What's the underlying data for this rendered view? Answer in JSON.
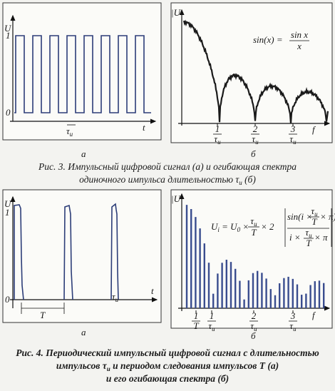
{
  "figure3": {
    "panel_a": {
      "y_label": "U",
      "level_high": "1",
      "level_low": "0",
      "x_label": "t",
      "pulse_width": {
        "symbol": "τ",
        "sub": "и"
      },
      "letter": "а"
    },
    "panel_b": {
      "y_label": "|U|",
      "formula": {
        "lhs": "sin(x) =",
        "num": "sin x",
        "den": "x"
      },
      "ticks": [
        {
          "num": "1",
          "den": "τ",
          "sub": "и"
        },
        {
          "num": "2",
          "den": "τ",
          "sub": "и"
        },
        {
          "num": "3",
          "den": "τ",
          "sub": "и"
        }
      ],
      "x_label": "f",
      "letter": "б"
    },
    "caption": {
      "line1": "Рис. 3. Импульсный цифровой сигнал (а) и огибающая спектра",
      "line2": "одиночного импульса длительностью τ",
      "line2_sub": "и",
      "line2_end": " (б)"
    }
  },
  "figure4": {
    "panel_a": {
      "y_label": "U",
      "level_high": "1",
      "level_low": "0",
      "x_label": "t",
      "period": "T",
      "pulse_width": {
        "symbol": "τ",
        "sub": "и"
      },
      "letter": "а"
    },
    "panel_b": {
      "y_label": "|U|",
      "formula": {
        "u": "U",
        "u_sub": "i",
        "eq": " = U",
        "u0_sub": "0",
        "times": " ×",
        "ratio": {
          "num": "τ",
          "sub": "и",
          "den": "T"
        },
        "times2": "× 2",
        "sin_open": "sin(i ×",
        "sin_close": "× π)",
        "den_open": "i ×",
        "den_close": "× π"
      },
      "ticks": [
        {
          "num": "1",
          "den": "T",
          "sub": ""
        },
        {
          "num": "1",
          "den": "τ",
          "sub": "и"
        },
        {
          "num": "2",
          "den": "τ",
          "sub": "и"
        },
        {
          "num": "3",
          "den": "τ",
          "sub": "и"
        }
      ],
      "x_label": "f",
      "letter": "б"
    },
    "caption": {
      "number": "Рис. 4. ",
      "line1": "Периодический импульсный цифровой сигнал с длительностью",
      "line2": "импульсов τ",
      "line2_sub": "и",
      "line2_end": " и периодом следования импульсов T (а)",
      "line3": "и его огибающая спектра (б)"
    }
  }
}
